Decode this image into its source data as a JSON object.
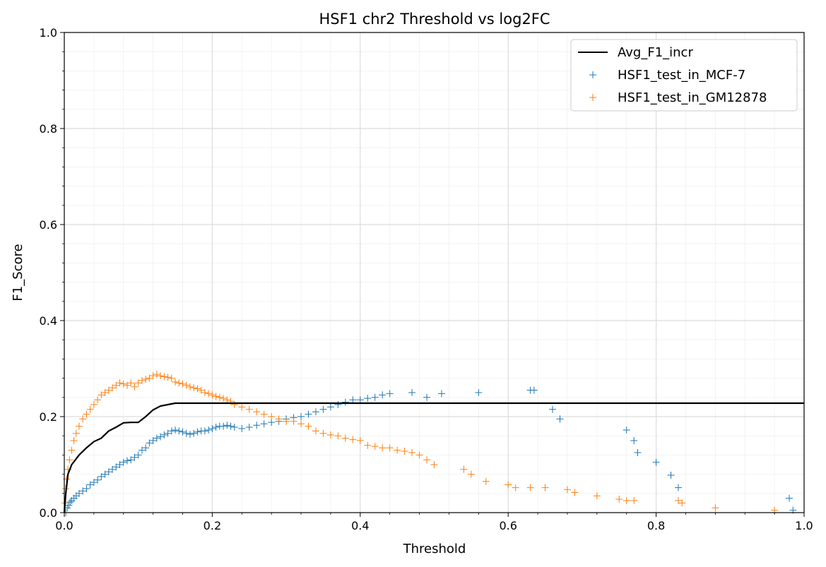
{
  "chart_data": {
    "type": "scatter",
    "title": "HSF1 chr2 Threshold vs log2FC",
    "xlabel": "Threshold",
    "ylabel": "F1_Score",
    "xlim": [
      0.0,
      1.0
    ],
    "ylim": [
      0.0,
      1.0
    ],
    "xticks": [
      "0.0",
      "0.2",
      "0.4",
      "0.6",
      "0.8",
      "1.0"
    ],
    "yticks": [
      "0.0",
      "0.2",
      "0.4",
      "0.6",
      "0.8",
      "1.0"
    ],
    "grid": true,
    "minor_grid": true,
    "legend_position": "top-right",
    "series": [
      {
        "name": "Avg_F1_incr",
        "kind": "line",
        "color": "#000000",
        "x": [
          0.0,
          0.002,
          0.005,
          0.01,
          0.02,
          0.03,
          0.04,
          0.05,
          0.06,
          0.07,
          0.08,
          0.09,
          0.1,
          0.11,
          0.12,
          0.13,
          0.14,
          0.15,
          0.2,
          0.3,
          0.5,
          0.7,
          1.0
        ],
        "y": [
          0.0,
          0.04,
          0.08,
          0.1,
          0.12,
          0.135,
          0.148,
          0.155,
          0.17,
          0.178,
          0.187,
          0.188,
          0.188,
          0.2,
          0.214,
          0.222,
          0.225,
          0.228,
          0.228,
          0.228,
          0.228,
          0.228,
          0.228
        ]
      },
      {
        "name": "HSF1_test_in_MCF-7",
        "kind": "scatter",
        "marker": "+",
        "color": "#1f77b4",
        "x": [
          0.002,
          0.004,
          0.006,
          0.008,
          0.01,
          0.013,
          0.016,
          0.02,
          0.025,
          0.03,
          0.035,
          0.04,
          0.045,
          0.05,
          0.055,
          0.06,
          0.065,
          0.07,
          0.075,
          0.08,
          0.085,
          0.09,
          0.095,
          0.1,
          0.105,
          0.11,
          0.115,
          0.12,
          0.125,
          0.13,
          0.135,
          0.14,
          0.145,
          0.15,
          0.155,
          0.16,
          0.165,
          0.17,
          0.175,
          0.18,
          0.185,
          0.19,
          0.195,
          0.2,
          0.205,
          0.21,
          0.215,
          0.22,
          0.225,
          0.23,
          0.24,
          0.25,
          0.26,
          0.27,
          0.28,
          0.29,
          0.3,
          0.31,
          0.32,
          0.33,
          0.34,
          0.35,
          0.36,
          0.37,
          0.38,
          0.39,
          0.4,
          0.41,
          0.42,
          0.43,
          0.44,
          0.47,
          0.49,
          0.51,
          0.56,
          0.63,
          0.635,
          0.66,
          0.67,
          0.76,
          0.77,
          0.775,
          0.8,
          0.82,
          0.83,
          0.98,
          0.985
        ],
        "y": [
          0.0,
          0.01,
          0.015,
          0.022,
          0.025,
          0.03,
          0.035,
          0.04,
          0.045,
          0.05,
          0.058,
          0.063,
          0.068,
          0.075,
          0.08,
          0.085,
          0.09,
          0.095,
          0.1,
          0.105,
          0.108,
          0.11,
          0.115,
          0.12,
          0.13,
          0.135,
          0.145,
          0.15,
          0.155,
          0.158,
          0.162,
          0.165,
          0.17,
          0.172,
          0.17,
          0.168,
          0.165,
          0.163,
          0.165,
          0.168,
          0.17,
          0.17,
          0.172,
          0.175,
          0.178,
          0.18,
          0.18,
          0.182,
          0.18,
          0.178,
          0.175,
          0.178,
          0.182,
          0.185,
          0.188,
          0.19,
          0.195,
          0.198,
          0.2,
          0.205,
          0.21,
          0.215,
          0.22,
          0.225,
          0.23,
          0.235,
          0.235,
          0.238,
          0.24,
          0.245,
          0.248,
          0.25,
          0.24,
          0.248,
          0.25,
          0.255,
          0.255,
          0.215,
          0.195,
          0.172,
          0.15,
          0.125,
          0.105,
          0.078,
          0.052,
          0.03,
          0.005
        ]
      },
      {
        "name": "HSF1_test_in_GM12878",
        "kind": "scatter",
        "marker": "+",
        "color": "#ff7f0e",
        "x": [
          0.001,
          0.002,
          0.003,
          0.005,
          0.007,
          0.01,
          0.013,
          0.016,
          0.02,
          0.025,
          0.03,
          0.035,
          0.04,
          0.045,
          0.05,
          0.055,
          0.06,
          0.065,
          0.07,
          0.075,
          0.08,
          0.085,
          0.09,
          0.095,
          0.1,
          0.105,
          0.11,
          0.115,
          0.12,
          0.125,
          0.13,
          0.135,
          0.14,
          0.145,
          0.15,
          0.155,
          0.16,
          0.165,
          0.17,
          0.175,
          0.18,
          0.185,
          0.19,
          0.195,
          0.2,
          0.205,
          0.21,
          0.215,
          0.22,
          0.225,
          0.23,
          0.24,
          0.25,
          0.26,
          0.27,
          0.28,
          0.29,
          0.3,
          0.31,
          0.32,
          0.33,
          0.34,
          0.35,
          0.36,
          0.37,
          0.38,
          0.39,
          0.4,
          0.41,
          0.42,
          0.43,
          0.44,
          0.45,
          0.46,
          0.47,
          0.48,
          0.49,
          0.5,
          0.54,
          0.55,
          0.57,
          0.6,
          0.61,
          0.63,
          0.65,
          0.68,
          0.69,
          0.72,
          0.75,
          0.76,
          0.77,
          0.83,
          0.835,
          0.88,
          0.96
        ],
        "y": [
          0.02,
          0.05,
          0.07,
          0.09,
          0.11,
          0.13,
          0.15,
          0.165,
          0.18,
          0.195,
          0.205,
          0.215,
          0.225,
          0.235,
          0.245,
          0.25,
          0.255,
          0.26,
          0.265,
          0.27,
          0.268,
          0.265,
          0.27,
          0.262,
          0.27,
          0.275,
          0.278,
          0.28,
          0.285,
          0.288,
          0.285,
          0.283,
          0.282,
          0.28,
          0.272,
          0.27,
          0.268,
          0.265,
          0.262,
          0.26,
          0.258,
          0.255,
          0.25,
          0.248,
          0.245,
          0.242,
          0.24,
          0.238,
          0.235,
          0.232,
          0.225,
          0.22,
          0.215,
          0.21,
          0.205,
          0.2,
          0.195,
          0.19,
          0.19,
          0.185,
          0.18,
          0.17,
          0.165,
          0.162,
          0.16,
          0.155,
          0.152,
          0.15,
          0.14,
          0.138,
          0.135,
          0.135,
          0.13,
          0.128,
          0.125,
          0.12,
          0.11,
          0.1,
          0.09,
          0.08,
          0.065,
          0.058,
          0.052,
          0.052,
          0.052,
          0.048,
          0.042,
          0.035,
          0.028,
          0.025,
          0.025,
          0.025,
          0.02,
          0.01,
          0.005
        ]
      }
    ]
  }
}
